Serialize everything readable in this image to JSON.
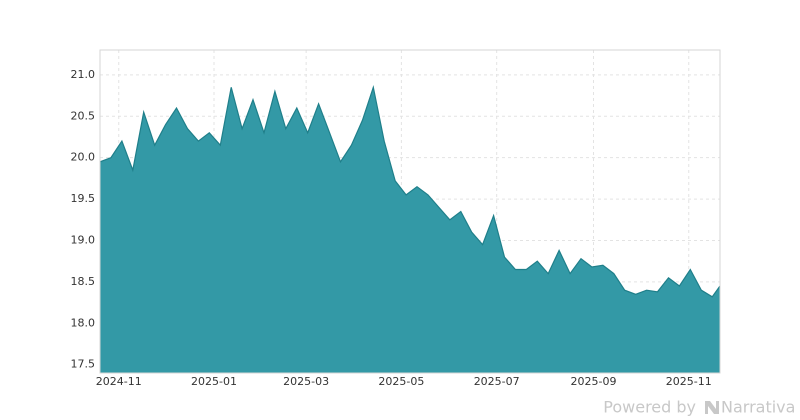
{
  "chart_data": {
    "type": "area",
    "color": "#3399a6",
    "line_color": "#1f7f8a",
    "grid": true,
    "x": [
      "2024-10-20",
      "2024-10-27",
      "2024-11-03",
      "2024-11-10",
      "2024-11-17",
      "2024-11-24",
      "2024-12-01",
      "2024-12-08",
      "2024-12-15",
      "2024-12-22",
      "2024-12-29",
      "2025-01-05",
      "2025-01-12",
      "2025-01-19",
      "2025-01-26",
      "2025-02-02",
      "2025-02-09",
      "2025-02-16",
      "2025-02-23",
      "2025-03-02",
      "2025-03-09",
      "2025-03-16",
      "2025-03-23",
      "2025-03-30",
      "2025-04-06",
      "2025-04-13",
      "2025-04-20",
      "2025-04-27",
      "2025-05-04",
      "2025-05-11",
      "2025-05-18",
      "2025-05-25",
      "2025-06-01",
      "2025-06-08",
      "2025-06-15",
      "2025-06-22",
      "2025-06-29",
      "2025-07-06",
      "2025-07-13",
      "2025-07-20",
      "2025-07-27",
      "2025-08-03",
      "2025-08-10",
      "2025-08-17",
      "2025-08-24",
      "2025-08-31",
      "2025-09-07",
      "2025-09-14",
      "2025-09-21",
      "2025-09-28",
      "2025-10-05",
      "2025-10-12",
      "2025-10-19",
      "2025-10-26",
      "2025-11-02",
      "2025-11-09",
      "2025-11-16",
      "2025-11-21"
    ],
    "values": [
      19.95,
      20.0,
      20.2,
      19.85,
      20.55,
      20.15,
      20.4,
      20.6,
      20.35,
      20.2,
      20.3,
      20.15,
      20.85,
      20.35,
      20.7,
      20.3,
      20.8,
      20.35,
      20.6,
      20.3,
      20.65,
      20.3,
      19.95,
      20.15,
      20.45,
      20.85,
      20.2,
      19.72,
      19.55,
      19.65,
      19.55,
      19.4,
      19.25,
      19.35,
      19.1,
      18.95,
      19.3,
      18.8,
      18.65,
      18.65,
      18.75,
      18.6,
      18.88,
      18.6,
      18.78,
      18.68,
      18.7,
      18.6,
      18.4,
      18.35,
      18.4,
      18.38,
      18.55,
      18.45,
      18.65,
      18.4,
      18.32,
      18.45
    ],
    "xlim": [
      "2024-10-20",
      "2025-11-21"
    ],
    "xticks": [
      {
        "value": "2024-11-01",
        "label": "2024-11"
      },
      {
        "value": "2025-01-01",
        "label": "2025-01"
      },
      {
        "value": "2025-03-01",
        "label": "2025-03"
      },
      {
        "value": "2025-05-01",
        "label": "2025-05"
      },
      {
        "value": "2025-07-01",
        "label": "2025-07"
      },
      {
        "value": "2025-09-01",
        "label": "2025-09"
      },
      {
        "value": "2025-11-01",
        "label": "2025-11"
      }
    ],
    "ylim": [
      17.4,
      21.3
    ],
    "yticks": [
      {
        "value": 17.5,
        "label": "17.5"
      },
      {
        "value": 18,
        "label": "18.0"
      },
      {
        "value": 18.5,
        "label": "18.5"
      },
      {
        "value": 19,
        "label": "19.0"
      },
      {
        "value": 19.5,
        "label": "19.5"
      },
      {
        "value": 20,
        "label": "20.0"
      },
      {
        "value": 20.5,
        "label": "20.5"
      },
      {
        "value": 21,
        "label": "21.0"
      }
    ]
  },
  "footer": {
    "powered_by": "Powered by",
    "brand": "Narrativa"
  }
}
